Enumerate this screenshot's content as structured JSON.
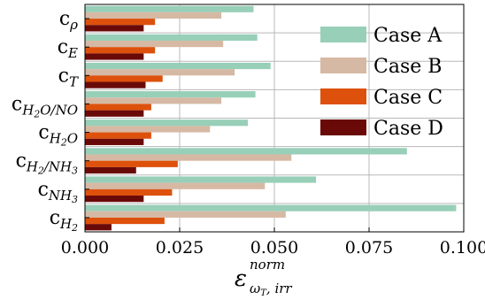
{
  "chart_data": {
    "type": "bar",
    "orientation": "horizontal",
    "categories": [
      {
        "label": "c",
        "sub": "ρ"
      },
      {
        "label": "c",
        "sub": "E"
      },
      {
        "label": "c",
        "sub": "T"
      },
      {
        "label": "c",
        "sub": "H2O/NO"
      },
      {
        "label": "c",
        "sub": "H2O"
      },
      {
        "label": "c",
        "sub": "H2/NH3"
      },
      {
        "label": "c",
        "sub": "NH3"
      },
      {
        "label": "c",
        "sub": "H2"
      }
    ],
    "series": [
      {
        "name": "Case A",
        "color": "#98cfb8",
        "values": [
          0.0445,
          0.0455,
          0.049,
          0.045,
          0.043,
          0.085,
          0.061,
          0.098
        ]
      },
      {
        "name": "Case B",
        "color": "#d6b9a4",
        "values": [
          0.036,
          0.0365,
          0.0395,
          0.036,
          0.033,
          0.0545,
          0.0475,
          0.053
        ]
      },
      {
        "name": "Case C",
        "color": "#dd510c",
        "values": [
          0.0185,
          0.0185,
          0.0205,
          0.0175,
          0.0175,
          0.0245,
          0.023,
          0.021
        ]
      },
      {
        "name": "Case D",
        "color": "#6a0a08",
        "values": [
          0.0155,
          0.0155,
          0.016,
          0.0155,
          0.0155,
          0.0135,
          0.0155,
          0.007
        ]
      }
    ],
    "xlim": [
      0.0,
      0.1
    ],
    "xticks": [
      "0.000",
      "0.025",
      "0.050",
      "0.075",
      "0.100"
    ],
    "xlabel": {
      "main": "ε",
      "sup": "norm",
      "sub_main": "ω",
      "sub_sub": "T",
      "sub_rest": ", irr"
    },
    "grid": true,
    "legend": {
      "position": "top-right",
      "entries": [
        "Case A",
        "Case B",
        "Case C",
        "Case D"
      ]
    }
  }
}
